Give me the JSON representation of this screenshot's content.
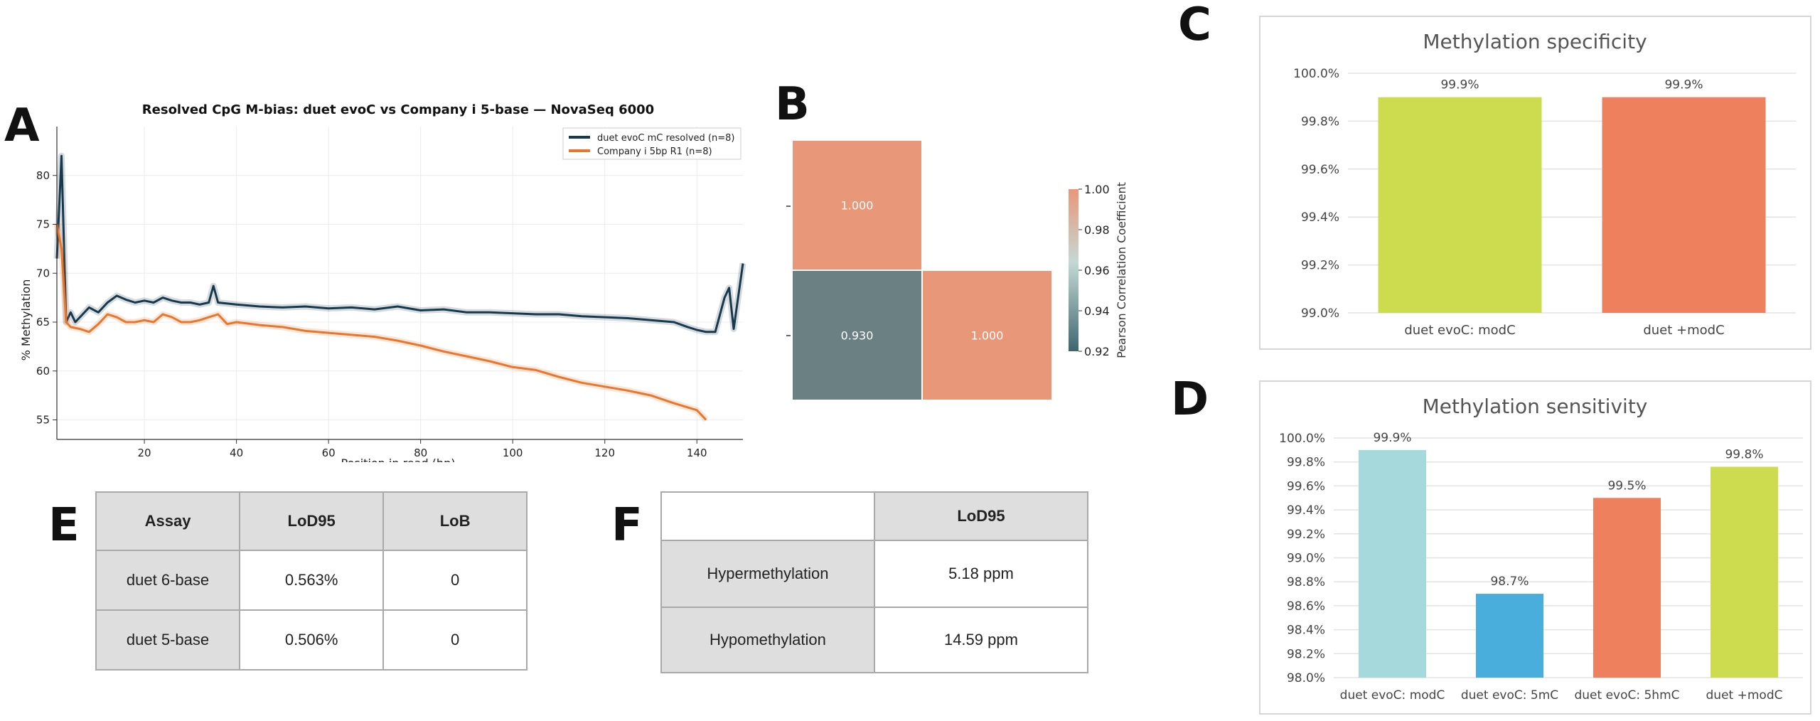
{
  "panel_labels": {
    "a": "A",
    "b": "B",
    "c": "C",
    "d": "D",
    "e": "E",
    "f": "F"
  },
  "chart_data": [
    {
      "id": "A",
      "type": "line",
      "title": "Resolved CpG M-bias: duet evoC vs Company i 5-base — NovaSeq 6000",
      "xlabel": "Position in read (bp)",
      "ylabel": "% Methylation",
      "xlim": [
        1,
        150
      ],
      "ylim": [
        53,
        85
      ],
      "xticks": [
        "20",
        "40",
        "60",
        "80",
        "100",
        "120",
        "140"
      ],
      "yticks": [
        "55",
        "60",
        "65",
        "70",
        "75",
        "80"
      ],
      "grid": true,
      "legend_position": "top-right",
      "series": [
        {
          "name": "duet evoC mC resolved (n=8)",
          "color": "#17394d",
          "x": [
            1,
            2,
            3,
            4,
            5,
            6,
            8,
            10,
            12,
            14,
            16,
            18,
            20,
            22,
            24,
            26,
            28,
            30,
            32,
            34,
            35,
            36,
            38,
            40,
            45,
            50,
            55,
            60,
            65,
            70,
            75,
            80,
            85,
            90,
            95,
            100,
            105,
            110,
            115,
            120,
            125,
            130,
            135,
            138,
            140,
            142,
            144,
            146,
            147,
            148,
            150
          ],
          "y": [
            71.5,
            82.0,
            65.0,
            66.0,
            65.0,
            65.5,
            66.5,
            66.0,
            67.0,
            67.7,
            67.3,
            67.0,
            67.2,
            67.0,
            67.5,
            67.2,
            67.0,
            67.0,
            66.8,
            67.0,
            68.7,
            67.0,
            66.9,
            66.8,
            66.6,
            66.5,
            66.6,
            66.4,
            66.5,
            66.3,
            66.6,
            66.2,
            66.3,
            66.0,
            66.0,
            65.9,
            65.8,
            65.8,
            65.6,
            65.5,
            65.4,
            65.2,
            65.0,
            64.5,
            64.2,
            64.0,
            64.0,
            67.5,
            68.5,
            64.3,
            71.0
          ]
        },
        {
          "name": "Company i 5bp R1 (n=8)",
          "color": "#e8772e",
          "x": [
            1,
            2,
            3,
            4,
            6,
            8,
            10,
            12,
            14,
            16,
            18,
            20,
            22,
            24,
            26,
            28,
            30,
            32,
            34,
            36,
            38,
            40,
            45,
            50,
            55,
            60,
            65,
            70,
            75,
            80,
            85,
            90,
            95,
            100,
            105,
            110,
            115,
            120,
            125,
            130,
            135,
            140,
            142
          ],
          "y": [
            75.0,
            72.5,
            65.0,
            64.5,
            64.3,
            64.0,
            64.8,
            65.8,
            65.5,
            65.0,
            65.0,
            65.2,
            65.0,
            65.8,
            65.5,
            65.0,
            65.0,
            65.2,
            65.5,
            65.8,
            64.8,
            65.0,
            64.7,
            64.5,
            64.1,
            63.9,
            63.7,
            63.5,
            63.1,
            62.6,
            62.0,
            61.5,
            61.0,
            60.4,
            60.1,
            59.4,
            58.8,
            58.4,
            58.0,
            57.5,
            56.7,
            56.0,
            55.0
          ]
        }
      ]
    },
    {
      "id": "B",
      "type": "heatmap",
      "cells": [
        {
          "row": 0,
          "col": 0,
          "value": 1.0,
          "label": "1.000"
        },
        {
          "row": 1,
          "col": 0,
          "value": 0.93,
          "label": "0.930"
        },
        {
          "row": 1,
          "col": 1,
          "value": 1.0,
          "label": "1.000"
        }
      ],
      "colorbar": {
        "label": "Pearson Correlation Coefficient",
        "range": [
          0.92,
          1.0
        ],
        "ticks": [
          "1.00",
          "0.98",
          "0.96",
          "0.94",
          "0.92"
        ]
      }
    },
    {
      "id": "C",
      "type": "bar",
      "title": "Methylation specificity",
      "categories": [
        "duet evoC: modC",
        "duet +modC"
      ],
      "values": [
        99.9,
        99.9
      ],
      "value_labels": [
        "99.9%",
        "99.9%"
      ],
      "colors": [
        "#cddc4f",
        "#ef805d"
      ],
      "ylim": [
        99.0,
        100.0
      ],
      "yticks": [
        "100.0%",
        "99.8%",
        "99.6%",
        "99.4%",
        "99.2%",
        "99.0%"
      ],
      "grid": true
    },
    {
      "id": "D",
      "type": "bar",
      "title": "Methylation sensitivity",
      "categories": [
        "duet evoC: modC",
        "duet evoC: 5mC",
        "duet evoC: 5hmC",
        "duet +modC"
      ],
      "values": [
        99.9,
        98.7,
        99.5,
        99.76
      ],
      "value_labels": [
        "99.9%",
        "98.7%",
        "99.5%",
        "99.8%"
      ],
      "colors": [
        "#a6d9dc",
        "#4aaedc",
        "#ef805d",
        "#cddc4f"
      ],
      "ylim": [
        98.0,
        100.0
      ],
      "yticks": [
        "100.0%",
        "99.8%",
        "99.6%",
        "99.4%",
        "99.2%",
        "99.0%",
        "98.8%",
        "98.6%",
        "98.4%",
        "98.2%",
        "98.0%"
      ],
      "grid": true
    }
  ],
  "table_e": {
    "headers": [
      "Assay",
      "LoD95",
      "LoB"
    ],
    "rows": [
      [
        "duet 6-base",
        "0.563%",
        "0"
      ],
      [
        "duet 5-base",
        "0.506%",
        "0"
      ]
    ]
  },
  "table_f": {
    "headers": [
      "",
      "LoD95"
    ],
    "rows": [
      [
        "Hypermethylation",
        "5.18 ppm"
      ],
      [
        "Hypomethylation",
        "14.59 ppm"
      ]
    ]
  }
}
